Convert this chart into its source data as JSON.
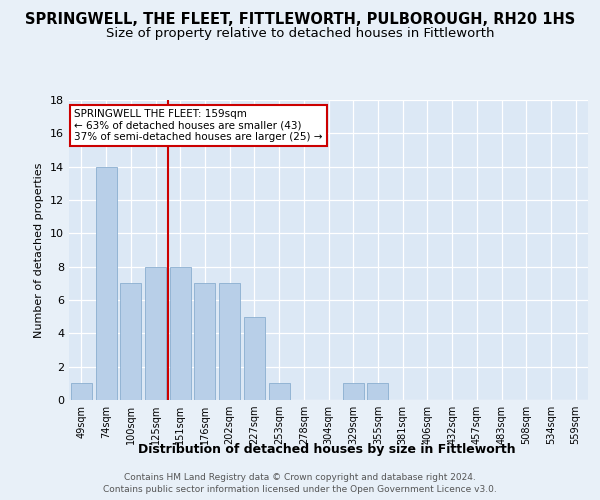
{
  "title": "SPRINGWELL, THE FLEET, FITTLEWORTH, PULBOROUGH, RH20 1HS",
  "subtitle": "Size of property relative to detached houses in Fittleworth",
  "xlabel": "Distribution of detached houses by size in Fittleworth",
  "ylabel": "Number of detached properties",
  "categories": [
    "49sqm",
    "74sqm",
    "100sqm",
    "125sqm",
    "151sqm",
    "176sqm",
    "202sqm",
    "227sqm",
    "253sqm",
    "278sqm",
    "304sqm",
    "329sqm",
    "355sqm",
    "381sqm",
    "406sqm",
    "432sqm",
    "457sqm",
    "483sqm",
    "508sqm",
    "534sqm",
    "559sqm"
  ],
  "values": [
    1,
    14,
    7,
    8,
    8,
    7,
    7,
    5,
    1,
    0,
    0,
    1,
    1,
    0,
    0,
    0,
    0,
    0,
    0,
    0,
    0
  ],
  "bar_color": "#b8cfe8",
  "red_line_x": 3.5,
  "annotation_line1": "SPRINGWELL THE FLEET: 159sqm",
  "annotation_line2": "← 63% of detached houses are smaller (43)",
  "annotation_line3": "37% of semi-detached houses are larger (25) →",
  "annotation_box_facecolor": "#ffffff",
  "annotation_box_edgecolor": "#cc0000",
  "red_line_color": "#cc0000",
  "ylim": [
    0,
    18
  ],
  "yticks": [
    0,
    2,
    4,
    6,
    8,
    10,
    12,
    14,
    16,
    18
  ],
  "background_color": "#e8f0f8",
  "plot_background_color": "#dce8f5",
  "grid_color": "#c8d8e8",
  "footer_line1": "Contains HM Land Registry data © Crown copyright and database right 2024.",
  "footer_line2": "Contains public sector information licensed under the Open Government Licence v3.0.",
  "title_fontsize": 10.5,
  "subtitle_fontsize": 9.5,
  "footer_fontsize": 6.5
}
